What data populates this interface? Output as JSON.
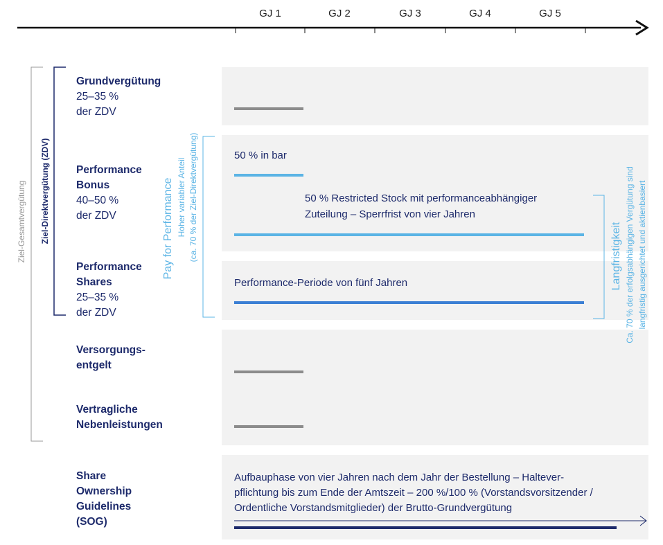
{
  "axis": {
    "years": [
      "GJ 1",
      "GJ 2",
      "GJ 3",
      "GJ 4",
      "GJ 5"
    ]
  },
  "brackets": {
    "total": "Ziel-Gesamtvergütung",
    "direct": "Ziel-Direktvergütung (ZDV)",
    "pay_for_performance": {
      "title": "Pay for Performance",
      "lines": [
        "Hoher variabler Anteil",
        "(ca. 70 % der Ziel-Direktvergütung)"
      ]
    },
    "long_term": {
      "title": "Langfristigkeit",
      "lines": [
        "Ca. 70 % der erfolgsabhängigen Vergütung sind",
        "langfristig ausgerichtet und aktienbasiert"
      ]
    }
  },
  "rows": [
    {
      "title": "Grundvergütung",
      "share": "25–35 %",
      "base": "der ZDV"
    },
    {
      "title": [
        "Performance",
        "Bonus"
      ],
      "share": "40–50 %",
      "base": "der ZDV"
    },
    {
      "title": [
        "Performance",
        "Shares"
      ],
      "share": "25–35 %",
      "base": "der ZDV"
    },
    {
      "title": [
        "Versorgungs-",
        "entgelt"
      ]
    },
    {
      "title": [
        "Vertragliche",
        "Nebenleistungen"
      ]
    },
    {
      "title": [
        "Share",
        "Ownership",
        "Guidelines",
        "(SOG)"
      ]
    }
  ],
  "panels": {
    "bonus_cash": "50 % in bar",
    "bonus_stock": [
      "50 % Restricted Stock mit performanceabhängiger",
      "Zuteilung – Sperrfrist von vier Jahren"
    ],
    "shares": "Performance-Periode von fünf Jahren",
    "sog": [
      "Aufbauphase von vier Jahren nach dem Jahr der Bestellung – Haltever-",
      "pflichtung bis zum Ende der Amtszeit – 200 %/100 % (Vorstandsvorsitzender /",
      "Ordentliche Vorstandsmitglieder) der Brutto-Grundvergütung"
    ]
  }
}
